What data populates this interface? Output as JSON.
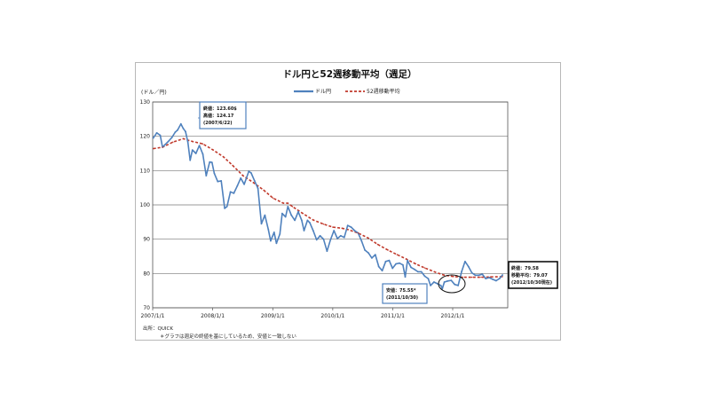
{
  "chart_data": {
    "type": "line",
    "title": "ドル円と52週移動平均（週足）",
    "ylabel": "(ドル／円)",
    "ylim": [
      70,
      130
    ],
    "yticks": [
      70,
      80,
      90,
      100,
      110,
      120,
      130
    ],
    "x_tick_labels": [
      "2007/1/1",
      "2008/1/1",
      "2009/1/1",
      "2010/1/1",
      "2011/1/1",
      "2012/1/1"
    ],
    "legend_position": "top-center",
    "grid": "horizontal",
    "series": [
      {
        "name": "ドル円",
        "color": "#4f81bd",
        "style": "solid",
        "points": [
          [
            "2007/1/5",
            119.5
          ],
          [
            "2007/1/26",
            121.0
          ],
          [
            "2007/2/16",
            120.3
          ],
          [
            "2007/3/2",
            116.8
          ],
          [
            "2007/3/16",
            117.5
          ],
          [
            "2007/4/6",
            118.5
          ],
          [
            "2007/4/27",
            119.6
          ],
          [
            "2007/5/18",
            121.2
          ],
          [
            "2007/6/1",
            121.8
          ],
          [
            "2007/6/22",
            123.6
          ],
          [
            "2007/7/6",
            122.3
          ],
          [
            "2007/7/20",
            121.4
          ],
          [
            "2007/8/3",
            118.4
          ],
          [
            "2007/8/17",
            113.0
          ],
          [
            "2007/8/31",
            116.0
          ],
          [
            "2007/9/21",
            115.0
          ],
          [
            "2007/10/12",
            117.3
          ],
          [
            "2007/11/2",
            114.8
          ],
          [
            "2007/11/23",
            108.5
          ],
          [
            "2007/12/14",
            112.5
          ],
          [
            "2007/12/28",
            112.4
          ],
          [
            "2008/1/11",
            109.2
          ],
          [
            "2008/2/1",
            106.8
          ],
          [
            "2008/2/22",
            107.0
          ],
          [
            "2008/3/14",
            99.0
          ],
          [
            "2008/3/28",
            99.5
          ],
          [
            "2008/4/18",
            103.8
          ],
          [
            "2008/5/9",
            103.4
          ],
          [
            "2008/5/30",
            105.5
          ],
          [
            "2008/6/20",
            107.8
          ],
          [
            "2008/7/11",
            106.0
          ],
          [
            "2008/8/8",
            109.8
          ],
          [
            "2008/8/22",
            109.3
          ],
          [
            "2008/9/12",
            107.0
          ],
          [
            "2008/10/3",
            104.8
          ],
          [
            "2008/10/24",
            94.5
          ],
          [
            "2008/11/14",
            97.0
          ],
          [
            "2008/12/5",
            92.8
          ],
          [
            "2008/12/19",
            89.5
          ],
          [
            "2009/1/9",
            92.0
          ],
          [
            "2009/1/23",
            88.8
          ],
          [
            "2009/2/13",
            91.5
          ],
          [
            "2009/2/27",
            97.5
          ],
          [
            "2009/3/20",
            96.5
          ],
          [
            "2009/4/3",
            99.5
          ],
          [
            "2009/4/24",
            97.0
          ],
          [
            "2009/5/15",
            95.5
          ],
          [
            "2009/6/5",
            98.0
          ],
          [
            "2009/6/26",
            95.5
          ],
          [
            "2009/7/10",
            92.5
          ],
          [
            "2009/7/31",
            95.5
          ],
          [
            "2009/8/14",
            94.8
          ],
          [
            "2009/9/4",
            92.5
          ],
          [
            "2009/9/25",
            89.8
          ],
          [
            "2009/10/16",
            91.0
          ],
          [
            "2009/11/6",
            90.0
          ],
          [
            "2009/11/27",
            86.5
          ],
          [
            "2009/12/18",
            89.8
          ],
          [
            "2010/1/8",
            92.5
          ],
          [
            "2010/1/29",
            90.2
          ],
          [
            "2010/2/19",
            91.0
          ],
          [
            "2010/3/12",
            90.5
          ],
          [
            "2010/4/2",
            94.0
          ],
          [
            "2010/4/23",
            93.5
          ],
          [
            "2010/5/14",
            92.5
          ],
          [
            "2010/6/4",
            91.8
          ],
          [
            "2010/6/25",
            89.5
          ],
          [
            "2010/7/16",
            86.8
          ],
          [
            "2010/8/6",
            86.0
          ],
          [
            "2010/8/27",
            84.5
          ],
          [
            "2010/9/17",
            85.5
          ],
          [
            "2010/10/8",
            82.0
          ],
          [
            "2010/10/29",
            80.8
          ],
          [
            "2010/11/19",
            83.5
          ],
          [
            "2010/12/10",
            83.8
          ],
          [
            "2010/12/31",
            81.5
          ],
          [
            "2011/1/21",
            82.8
          ],
          [
            "2011/2/11",
            83.0
          ],
          [
            "2011/3/4",
            82.5
          ],
          [
            "2011/3/18",
            79.0
          ],
          [
            "2011/4/1",
            83.8
          ],
          [
            "2011/4/22",
            81.8
          ],
          [
            "2011/5/13",
            81.2
          ],
          [
            "2011/6/3",
            80.5
          ],
          [
            "2011/6/24",
            80.5
          ],
          [
            "2011/7/15",
            79.2
          ],
          [
            "2011/8/5",
            78.5
          ],
          [
            "2011/8/19",
            76.5
          ],
          [
            "2011/9/9",
            77.5
          ],
          [
            "2011/9/30",
            77.0
          ],
          [
            "2011/10/21",
            76.5
          ],
          [
            "2011/10/30",
            75.55
          ],
          [
            "2011/11/11",
            77.5
          ],
          [
            "2011/12/2",
            77.8
          ],
          [
            "2011/12/23",
            78.0
          ],
          [
            "2012/1/13",
            76.8
          ],
          [
            "2012/2/3",
            76.5
          ],
          [
            "2012/2/24",
            80.5
          ],
          [
            "2012/3/16",
            83.5
          ],
          [
            "2012/4/6",
            82.0
          ],
          [
            "2012/4/27",
            80.2
          ],
          [
            "2012/5/18",
            79.5
          ],
          [
            "2012/6/8",
            79.5
          ],
          [
            "2012/6/29",
            79.8
          ],
          [
            "2012/7/20",
            78.5
          ],
          [
            "2012/8/10",
            78.8
          ],
          [
            "2012/8/31",
            78.3
          ],
          [
            "2012/9/21",
            77.9
          ],
          [
            "2012/10/12",
            78.5
          ],
          [
            "2012/10/30",
            79.58
          ]
        ]
      },
      {
        "name": "52週移動平均",
        "color": "#c0392b",
        "style": "dashed",
        "points": [
          [
            "2007/1/5",
            116.4
          ],
          [
            "2007/3/2",
            116.8
          ],
          [
            "2007/5/4",
            118.3
          ],
          [
            "2007/7/6",
            119.3
          ],
          [
            "2007/8/31",
            118.5
          ],
          [
            "2007/11/2",
            117.8
          ],
          [
            "2008/1/4",
            116.0
          ],
          [
            "2008/3/7",
            114.0
          ],
          [
            "2008/5/2",
            111.5
          ],
          [
            "2008/7/4",
            108.5
          ],
          [
            "2008/9/5",
            106.5
          ],
          [
            "2008/11/7",
            104.3
          ],
          [
            "2009/1/2",
            102.0
          ],
          [
            "2009/3/6",
            100.5
          ],
          [
            "2009/4/3",
            100.5
          ],
          [
            "2009/5/1",
            99.5
          ],
          [
            "2009/7/3",
            97.5
          ],
          [
            "2009/9/4",
            95.6
          ],
          [
            "2009/11/6",
            94.4
          ],
          [
            "2010/1/1",
            93.5
          ],
          [
            "2010/2/26",
            93.2
          ],
          [
            "2010/4/2",
            92.8
          ],
          [
            "2010/6/4",
            91.8
          ],
          [
            "2010/8/6",
            90.3
          ],
          [
            "2010/10/1",
            88.5
          ],
          [
            "2010/12/3",
            86.8
          ],
          [
            "2011/1/28",
            85.5
          ],
          [
            "2011/3/25",
            84.2
          ],
          [
            "2011/5/20",
            82.8
          ],
          [
            "2011/7/15",
            81.6
          ],
          [
            "2011/9/16",
            80.4
          ],
          [
            "2011/11/11",
            79.5
          ],
          [
            "2012/1/6",
            79.1
          ],
          [
            "2012/3/2",
            78.9
          ],
          [
            "2012/4/27",
            78.9
          ],
          [
            "2012/6/22",
            78.9
          ],
          [
            "2012/8/17",
            79.0
          ],
          [
            "2012/10/30",
            79.07
          ]
        ]
      }
    ],
    "annotations": [
      {
        "lines": [
          "終値：123.60$",
          "高値：124.17",
          "(2007/6/22)"
        ]
      },
      {
        "lines": [
          "安値：75.55*",
          "(2011/10/30)"
        ]
      },
      {
        "lines": [
          "終値：79.58",
          "移動平均：79.07",
          "(2012/10/30現在)"
        ]
      }
    ]
  },
  "notes": {
    "source": "出所：QUICK",
    "footnote": "＊グラフは週足の終値を基にしているため、安値と一致しない"
  }
}
